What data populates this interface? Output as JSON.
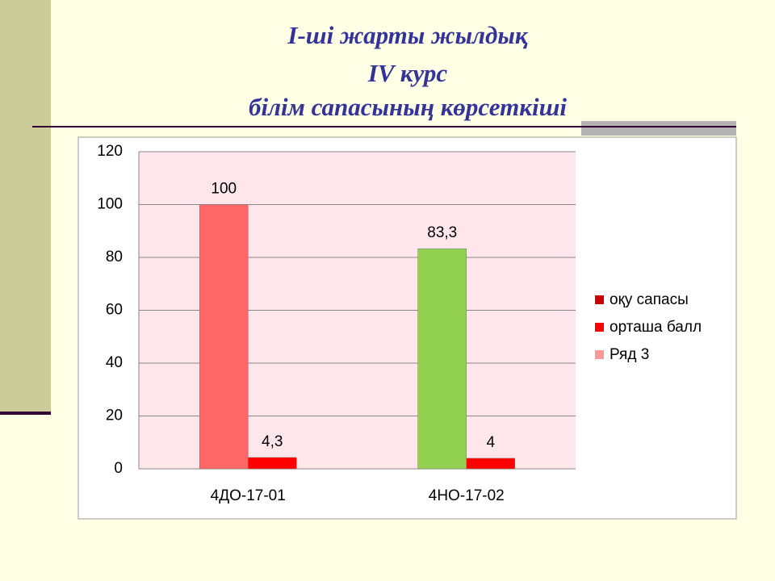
{
  "chart_data": {
    "type": "bar",
    "title": [
      "I-ші жарты жылдық",
      "IV курс",
      "білім сапасының көрсеткіші"
    ],
    "categories": [
      "4ДО-17-01",
      "4НО-17-02"
    ],
    "series": [
      {
        "name": "оқу сапасы",
        "color": "#cc0000",
        "point_colors": [
          "#ff6666",
          "#92d050"
        ],
        "values": [
          100,
          83.3
        ],
        "value_labels": [
          "100",
          "83,3"
        ]
      },
      {
        "name": "орташа балл",
        "color": "#ff0000",
        "values": [
          4.3,
          4
        ],
        "value_labels": [
          "4,3",
          "4"
        ]
      },
      {
        "name": "Ряд 3",
        "color": "#ff9999",
        "values": [
          null,
          null
        ]
      }
    ],
    "ylim": [
      0,
      120
    ],
    "yticks": [
      0,
      20,
      40,
      60,
      80,
      100,
      120
    ],
    "grid": true,
    "legend": "right"
  }
}
